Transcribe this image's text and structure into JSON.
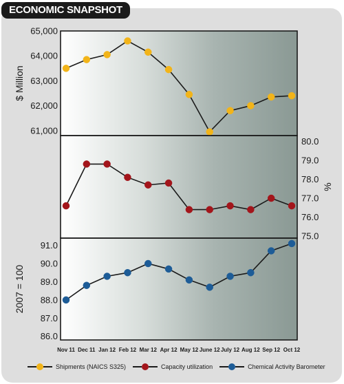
{
  "header": {
    "title": "ECONOMIC SNAPSHOT"
  },
  "chart_data": {
    "type": "line",
    "categories": [
      "Nov 11",
      "Dec 11",
      "Jan 12",
      "Feb 12",
      "Mar 12",
      "Apr 12",
      "May 12",
      "June 12",
      "July 12",
      "Aug 12",
      "Sep 12",
      "Oct 12"
    ],
    "panels": [
      {
        "series_name": "Shipments (NAICS S325)",
        "color": "#f2b419",
        "values": [
          63500,
          63850,
          64050,
          64600,
          64150,
          63450,
          62450,
          60950,
          61800,
          62000,
          62350,
          62400
        ],
        "ylabel": "$ Million",
        "ylabel_side": "left",
        "ylim": [
          60800,
          65000
        ],
        "ticks": [
          "61,000",
          "62,000",
          "63,000",
          "64,000",
          "65,000"
        ]
      },
      {
        "series_name": "Capacity utilization",
        "color": "#a3151b",
        "values": [
          76.6,
          78.8,
          78.8,
          78.1,
          77.7,
          77.8,
          76.4,
          76.4,
          76.6,
          76.4,
          77.0,
          76.6
        ],
        "ylabel": "%",
        "ylabel_side": "right",
        "ylim": [
          74.9,
          80.3
        ],
        "ticks": [
          "75.0",
          "76.0",
          "77.0",
          "78.0",
          "79.0",
          "80.0"
        ]
      },
      {
        "series_name": "Chemical Activity Barometer",
        "color": "#1d5c97",
        "values": [
          88.0,
          88.8,
          89.3,
          89.5,
          90.0,
          89.7,
          89.1,
          88.7,
          89.3,
          89.5,
          90.7,
          91.1
        ],
        "ylabel": "2007 = 100",
        "ylabel_side": "left",
        "ylim": [
          85.8,
          91.4
        ],
        "ticks": [
          "86.0",
          "87.0",
          "88.0",
          "89.0",
          "90.0",
          "91.0"
        ]
      }
    ],
    "legend": [
      {
        "name": "Shipments (NAICS S325)",
        "color": "#f2b419"
      },
      {
        "name": "Capacity utilization",
        "color": "#a3151b"
      },
      {
        "name": "Chemical Activity Barometer",
        "color": "#1d5c97"
      }
    ],
    "legend_position": "bottom",
    "grid": false
  }
}
